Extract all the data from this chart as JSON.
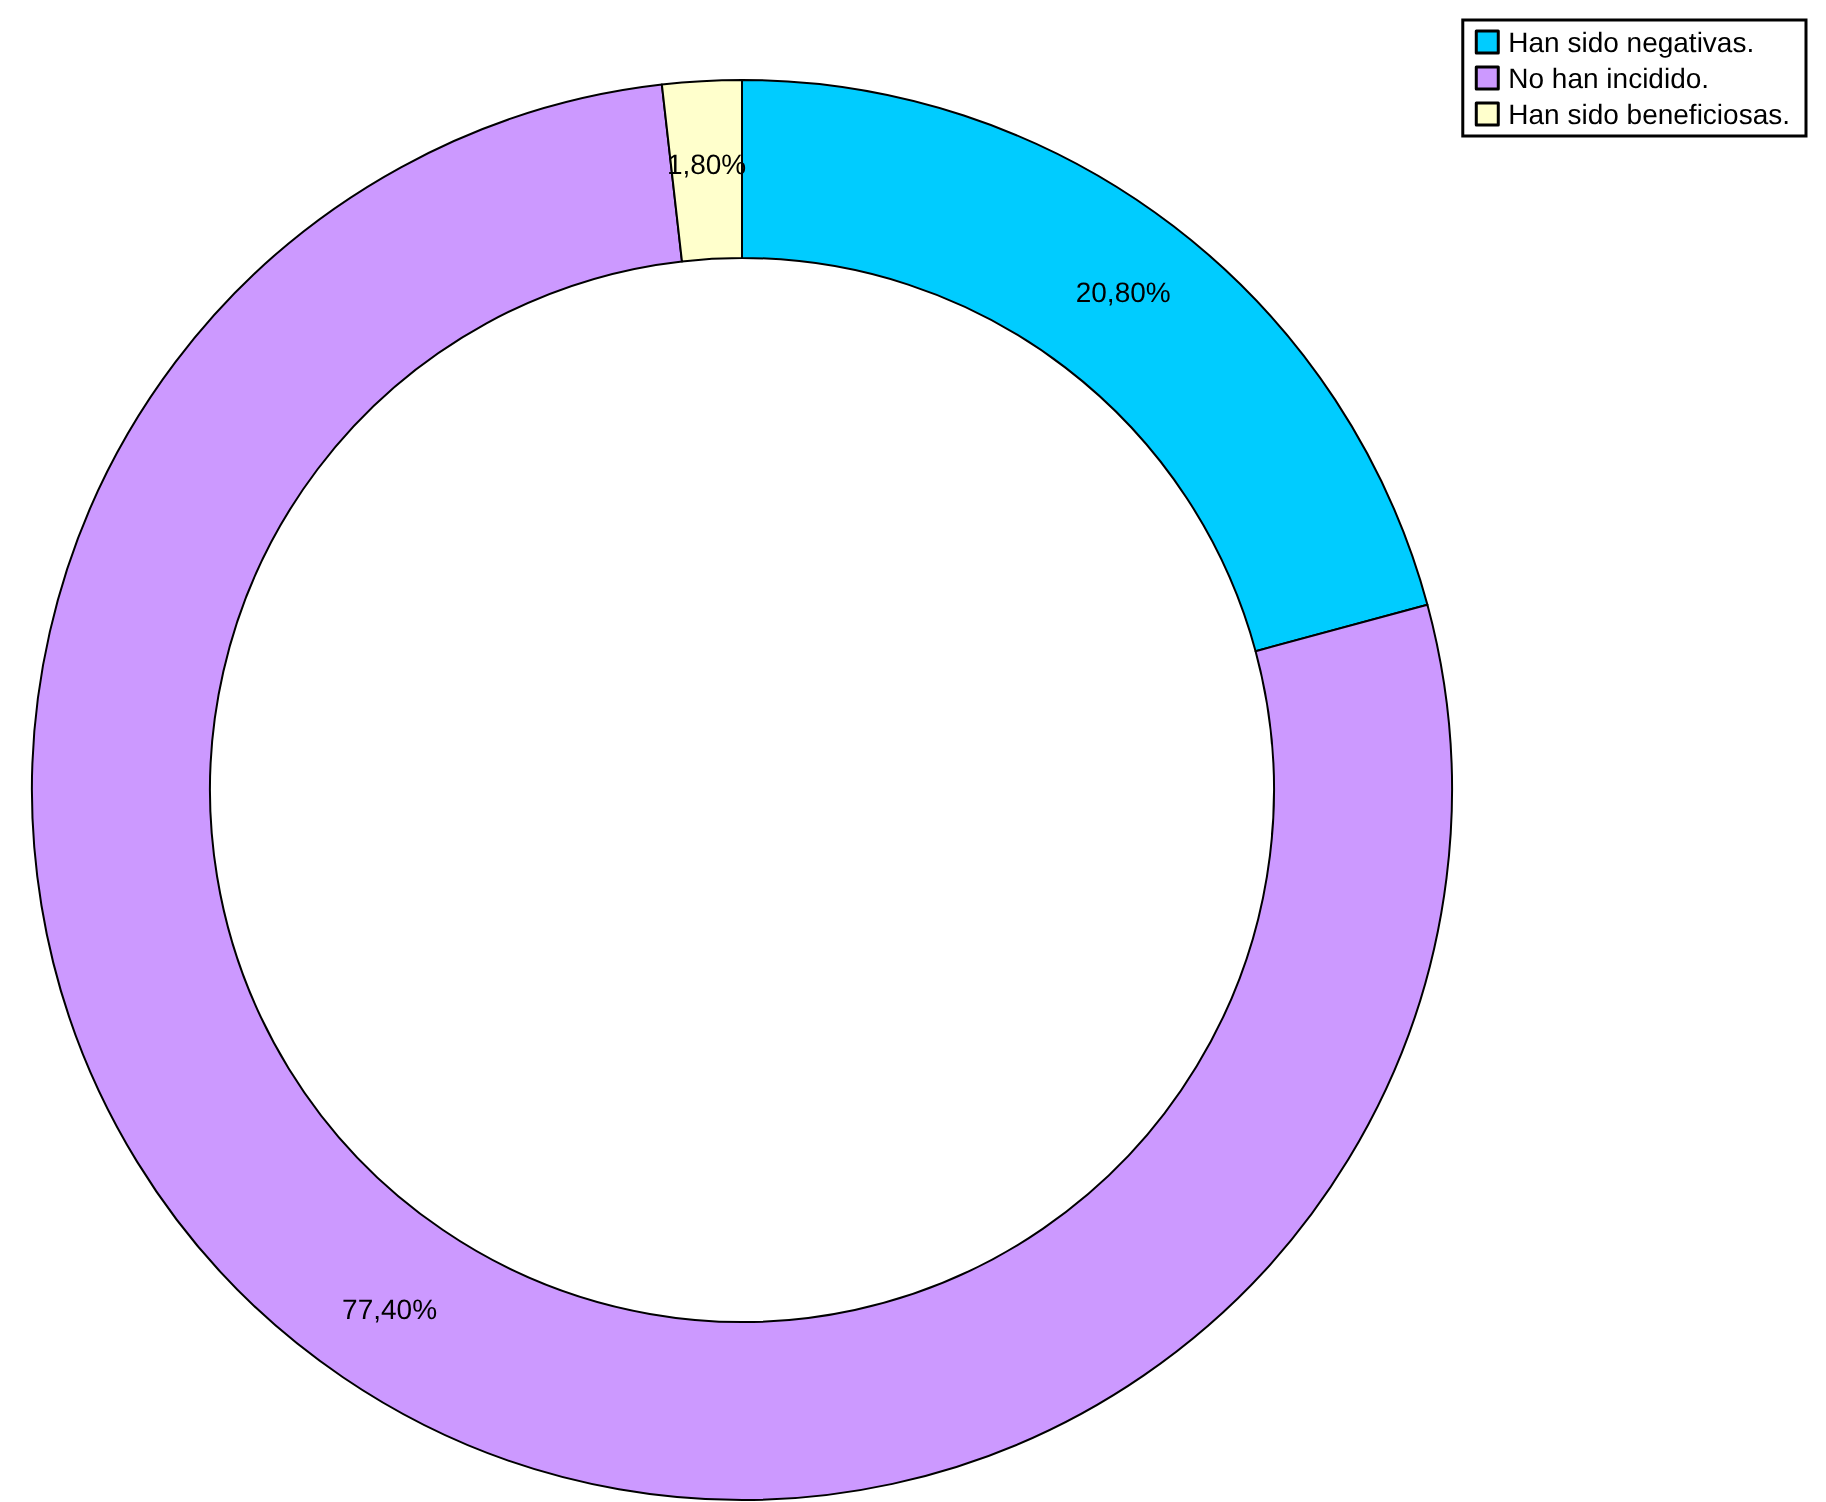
{
  "chart_data": {
    "type": "donut",
    "categories": [
      "Han sido negativas.",
      "No han incidido.",
      "Han sido beneficiosas."
    ],
    "values": [
      20.8,
      77.4,
      1.8
    ],
    "colors": [
      "#00ccff",
      "#cc99ff",
      "#ffffcc"
    ],
    "value_labels": [
      "20,80%",
      "77,40%",
      "1,80%"
    ],
    "legend": "top right"
  }
}
